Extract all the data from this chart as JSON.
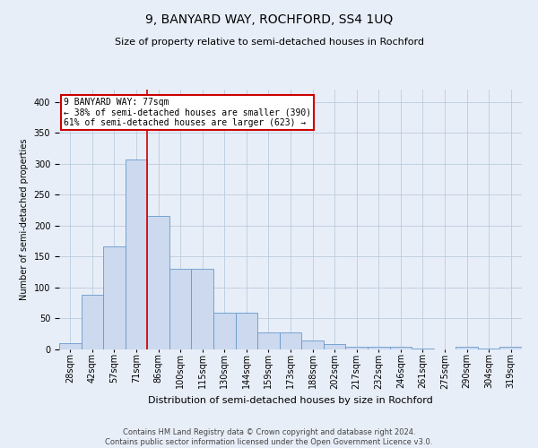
{
  "title": "9, BANYARD WAY, ROCHFORD, SS4 1UQ",
  "subtitle": "Size of property relative to semi-detached houses in Rochford",
  "xlabel": "Distribution of semi-detached houses by size in Rochford",
  "ylabel": "Number of semi-detached properties",
  "footer_line1": "Contains HM Land Registry data © Crown copyright and database right 2024.",
  "footer_line2": "Contains public sector information licensed under the Open Government Licence v3.0.",
  "annotation_title": "9 BANYARD WAY: 77sqm",
  "annotation_line1": "← 38% of semi-detached houses are smaller (390)",
  "annotation_line2": "61% of semi-detached houses are larger (623) →",
  "bar_labels": [
    "28sqm",
    "42sqm",
    "57sqm",
    "71sqm",
    "86sqm",
    "100sqm",
    "115sqm",
    "130sqm",
    "144sqm",
    "159sqm",
    "173sqm",
    "188sqm",
    "202sqm",
    "217sqm",
    "232sqm",
    "246sqm",
    "261sqm",
    "275sqm",
    "290sqm",
    "304sqm",
    "319sqm"
  ],
  "bar_values": [
    10,
    88,
    166,
    307,
    216,
    130,
    130,
    59,
    59,
    27,
    27,
    15,
    8,
    4,
    4,
    4,
    1,
    0,
    4,
    1,
    4
  ],
  "bar_color": "#ccd9ee",
  "bar_edge_color": "#6699cc",
  "vline_color": "#cc0000",
  "vline_x": 3.5,
  "annotation_box_facecolor": "#ffffff",
  "annotation_box_edgecolor": "#cc0000",
  "grid_color": "#bbccdd",
  "background_color": "#e8eef8",
  "ylim": [
    0,
    420
  ],
  "yticks": [
    0,
    50,
    100,
    150,
    200,
    250,
    300,
    350,
    400
  ],
  "title_fontsize": 10,
  "subtitle_fontsize": 8,
  "ylabel_fontsize": 7,
  "xlabel_fontsize": 8,
  "tick_fontsize": 7,
  "footer_fontsize": 6
}
